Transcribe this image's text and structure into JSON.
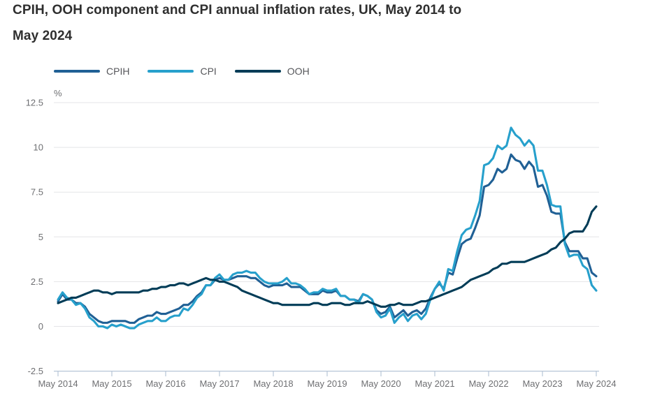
{
  "title": {
    "line1": "CPIH, OOH component and CPI annual inflation rates, UK, May 2014 to",
    "line2": "May 2024"
  },
  "legend": [
    {
      "label": "CPIH",
      "color": "#206095"
    },
    {
      "label": "CPI",
      "color": "#27a0cc"
    },
    {
      "label": "OOH",
      "color": "#003c57"
    }
  ],
  "chart_data": {
    "type": "line",
    "title": "CPIH, OOH component and CPI annual inflation rates, UK, May 2014 to May 2024",
    "ylabel": "%",
    "unit_label": "%",
    "ylim": [
      -2.5,
      12.5
    ],
    "y_ticks": [
      12.5,
      10,
      7.5,
      5,
      2.5,
      0,
      -2.5
    ],
    "x_frequency": "monthly",
    "x_start_label": "May 2014",
    "x_end_label": "May 2024",
    "x_tick_labels": [
      "May 2014",
      "May 2015",
      "May 2016",
      "May 2017",
      "May 2018",
      "May 2019",
      "May 2020",
      "May 2021",
      "May 2022",
      "May 2023",
      "May 2024"
    ],
    "grid": "horizontal",
    "legend_position": "top",
    "grid_color": "#e4e5e7",
    "axis_color": "#b7c6d7",
    "tick_label_color": "#6e6f72",
    "series": [
      {
        "name": "CPIH",
        "color": "#206095",
        "values": [
          1.4,
          1.8,
          1.5,
          1.5,
          1.3,
          1.3,
          1.1,
          0.7,
          0.5,
          0.3,
          0.2,
          0.2,
          0.3,
          0.3,
          0.3,
          0.3,
          0.2,
          0.2,
          0.4,
          0.5,
          0.6,
          0.6,
          0.8,
          0.7,
          0.7,
          0.8,
          0.9,
          1.0,
          1.2,
          1.2,
          1.4,
          1.7,
          1.9,
          2.3,
          2.3,
          2.6,
          2.7,
          2.6,
          2.6,
          2.7,
          2.8,
          2.8,
          2.8,
          2.7,
          2.7,
          2.5,
          2.3,
          2.2,
          2.3,
          2.3,
          2.3,
          2.4,
          2.2,
          2.2,
          2.2,
          2.0,
          1.8,
          1.8,
          1.8,
          2.0,
          1.9,
          1.9,
          2.0,
          1.7,
          1.7,
          1.5,
          1.5,
          1.4,
          1.8,
          1.7,
          1.5,
          0.9,
          0.7,
          0.8,
          1.1,
          0.5,
          0.7,
          0.9,
          0.6,
          0.8,
          0.9,
          0.7,
          1.0,
          1.6,
          2.1,
          2.4,
          2.1,
          3.0,
          2.9,
          3.8,
          4.6,
          4.8,
          4.9,
          5.5,
          6.2,
          7.8,
          7.9,
          8.2,
          8.8,
          8.6,
          8.8,
          9.6,
          9.3,
          9.2,
          8.8,
          9.2,
          8.9,
          7.8,
          7.9,
          7.3,
          6.4,
          6.3,
          6.3,
          4.7,
          4.2,
          4.2,
          4.2,
          3.8,
          3.8,
          3.0,
          2.8
        ]
      },
      {
        "name": "CPI",
        "color": "#27a0cc",
        "values": [
          1.5,
          1.9,
          1.6,
          1.5,
          1.2,
          1.3,
          1.0,
          0.5,
          0.3,
          0.0,
          0.0,
          -0.1,
          0.1,
          0.0,
          0.1,
          0.0,
          -0.1,
          -0.1,
          0.1,
          0.2,
          0.3,
          0.3,
          0.5,
          0.3,
          0.3,
          0.5,
          0.6,
          0.6,
          1.0,
          0.9,
          1.2,
          1.6,
          1.8,
          2.3,
          2.3,
          2.7,
          2.9,
          2.6,
          2.6,
          2.9,
          3.0,
          3.0,
          3.1,
          3.0,
          3.0,
          2.7,
          2.5,
          2.4,
          2.4,
          2.4,
          2.5,
          2.7,
          2.4,
          2.4,
          2.3,
          2.1,
          1.8,
          1.9,
          1.9,
          2.1,
          2.0,
          2.0,
          2.1,
          1.7,
          1.7,
          1.5,
          1.5,
          1.3,
          1.8,
          1.7,
          1.5,
          0.8,
          0.5,
          0.6,
          1.0,
          0.2,
          0.5,
          0.7,
          0.3,
          0.6,
          0.7,
          0.4,
          0.7,
          1.5,
          2.1,
          2.5,
          2.0,
          3.2,
          3.1,
          4.2,
          5.1,
          5.4,
          5.5,
          6.2,
          7.0,
          9.0,
          9.1,
          9.4,
          10.1,
          9.9,
          10.1,
          11.1,
          10.7,
          10.5,
          10.1,
          10.4,
          10.1,
          8.7,
          8.7,
          7.9,
          6.8,
          6.7,
          6.7,
          4.6,
          3.9,
          4.0,
          4.0,
          3.4,
          3.2,
          2.3,
          2.0
        ]
      },
      {
        "name": "OOH",
        "color": "#003c57",
        "values": [
          1.3,
          1.4,
          1.5,
          1.6,
          1.6,
          1.7,
          1.8,
          1.9,
          2.0,
          2.0,
          1.9,
          1.9,
          1.8,
          1.9,
          1.9,
          1.9,
          1.9,
          1.9,
          1.9,
          2.0,
          2.0,
          2.1,
          2.1,
          2.2,
          2.2,
          2.3,
          2.3,
          2.4,
          2.4,
          2.3,
          2.4,
          2.5,
          2.6,
          2.7,
          2.6,
          2.6,
          2.5,
          2.5,
          2.4,
          2.3,
          2.2,
          2.0,
          1.9,
          1.8,
          1.7,
          1.6,
          1.5,
          1.4,
          1.3,
          1.3,
          1.2,
          1.2,
          1.2,
          1.2,
          1.2,
          1.2,
          1.2,
          1.3,
          1.3,
          1.2,
          1.2,
          1.3,
          1.3,
          1.3,
          1.2,
          1.2,
          1.3,
          1.3,
          1.3,
          1.4,
          1.3,
          1.2,
          1.1,
          1.1,
          1.2,
          1.2,
          1.3,
          1.2,
          1.2,
          1.2,
          1.3,
          1.4,
          1.4,
          1.5,
          1.6,
          1.7,
          1.8,
          1.9,
          2.0,
          2.1,
          2.2,
          2.4,
          2.6,
          2.7,
          2.8,
          2.9,
          3.0,
          3.2,
          3.3,
          3.5,
          3.5,
          3.6,
          3.6,
          3.6,
          3.6,
          3.7,
          3.8,
          3.9,
          4.0,
          4.1,
          4.3,
          4.4,
          4.7,
          4.9,
          5.2,
          5.3,
          5.3,
          5.3,
          5.7,
          6.4,
          6.7
        ]
      }
    ]
  }
}
